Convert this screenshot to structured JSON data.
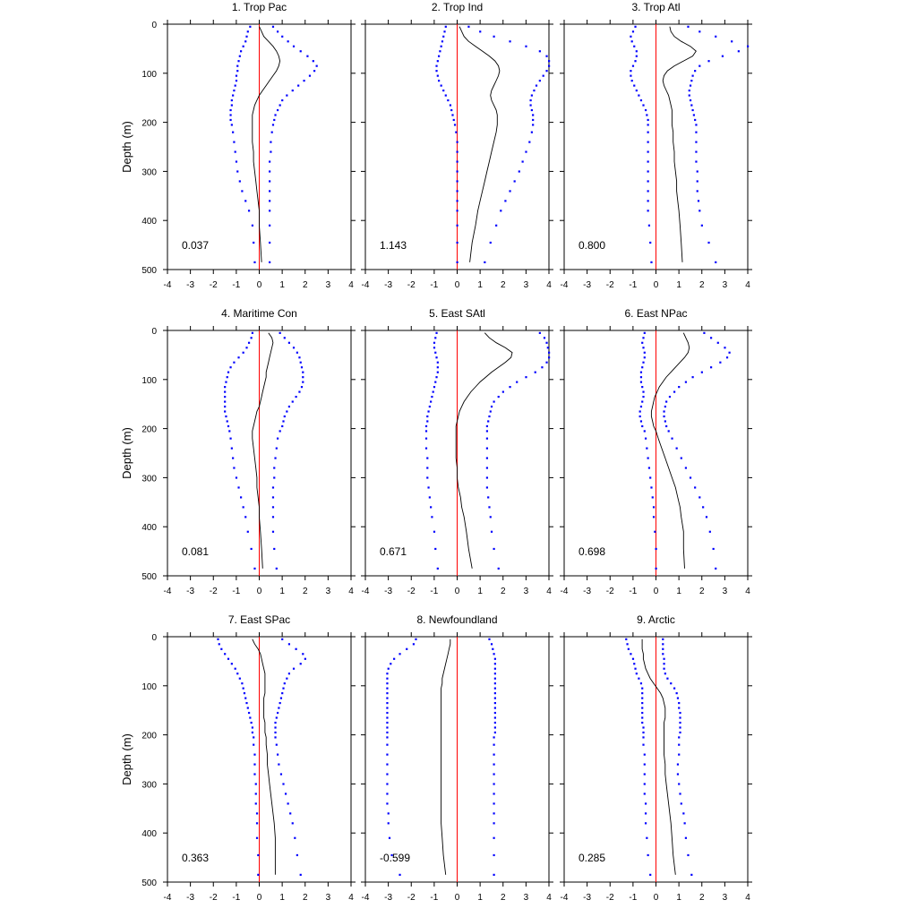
{
  "chart_data": {
    "type": "line",
    "layout": "3x3 grid of profile panels; x axis shared across columns, y axis (depth) labelled on left column",
    "ylabel": "Depth (m)",
    "xlim": [
      -4,
      4
    ],
    "ylim": [
      0,
      500
    ],
    "y_inverted": true,
    "x_ticks": [
      "-4",
      "-3",
      "-2",
      "-1",
      "0",
      "1",
      "2",
      "3",
      "4"
    ],
    "y_ticks": [
      "0",
      "100",
      "200",
      "300",
      "400",
      "500"
    ],
    "colors": {
      "profile": "#000000",
      "bounds": "#0000ff",
      "zero_line": "#ff0000"
    },
    "series_styles": {
      "profile": "solid black line",
      "bounds": "blue dotted markers (lower and upper)",
      "zero_line": "vertical red line at x=0"
    },
    "depths": [
      5,
      15,
      25,
      35,
      45,
      55,
      65,
      75,
      85,
      95,
      105,
      115,
      125,
      135,
      145,
      155,
      165,
      175,
      185,
      195,
      205,
      220,
      240,
      260,
      280,
      300,
      320,
      340,
      360,
      380,
      410,
      445,
      485
    ],
    "panels": [
      {
        "title": "1. Trop Pac",
        "value": "0.037",
        "profile": [
          0.0,
          0.1,
          0.2,
          0.4,
          0.6,
          0.75,
          0.85,
          0.9,
          0.85,
          0.75,
          0.6,
          0.45,
          0.3,
          0.15,
          0.0,
          -0.1,
          -0.2,
          -0.25,
          -0.3,
          -0.3,
          -0.3,
          -0.3,
          -0.3,
          -0.25,
          -0.25,
          -0.2,
          -0.15,
          -0.1,
          -0.05,
          0.0,
          0.0,
          0.05,
          0.1
        ],
        "lower": [
          -0.4,
          -0.5,
          -0.55,
          -0.6,
          -0.7,
          -0.8,
          -0.85,
          -0.9,
          -0.95,
          -0.95,
          -1.0,
          -1.0,
          -1.05,
          -1.1,
          -1.15,
          -1.2,
          -1.2,
          -1.25,
          -1.25,
          -1.25,
          -1.2,
          -1.15,
          -1.1,
          -1.05,
          -1.0,
          -0.95,
          -0.85,
          -0.75,
          -0.6,
          -0.45,
          -0.3,
          -0.25,
          -0.2
        ],
        "upper": [
          0.6,
          0.8,
          1.0,
          1.25,
          1.5,
          1.8,
          2.1,
          2.35,
          2.5,
          2.4,
          2.2,
          1.95,
          1.7,
          1.45,
          1.2,
          1.0,
          0.9,
          0.8,
          0.7,
          0.65,
          0.6,
          0.55,
          0.5,
          0.5,
          0.45,
          0.45,
          0.45,
          0.45,
          0.45,
          0.45,
          0.45,
          0.45,
          0.45
        ]
      },
      {
        "title": "2. Trop Ind",
        "value": "1.143",
        "profile": [
          0.1,
          0.2,
          0.3,
          0.5,
          0.8,
          1.1,
          1.4,
          1.65,
          1.8,
          1.85,
          1.8,
          1.7,
          1.6,
          1.5,
          1.45,
          1.5,
          1.6,
          1.7,
          1.75,
          1.75,
          1.75,
          1.7,
          1.6,
          1.5,
          1.4,
          1.3,
          1.2,
          1.1,
          1.0,
          0.9,
          0.8,
          0.65,
          0.55
        ],
        "lower": [
          -0.5,
          -0.55,
          -0.6,
          -0.65,
          -0.7,
          -0.75,
          -0.8,
          -0.85,
          -0.9,
          -0.9,
          -0.85,
          -0.8,
          -0.7,
          -0.6,
          -0.5,
          -0.4,
          -0.3,
          -0.25,
          -0.2,
          -0.15,
          -0.1,
          -0.05,
          0.0,
          0.0,
          0.0,
          0.0,
          0.0,
          0.0,
          0.0,
          0.0,
          0.0,
          0.0,
          0.0
        ],
        "upper": [
          0.5,
          1.0,
          1.6,
          2.3,
          3.0,
          3.6,
          3.9,
          4.0,
          4.0,
          3.9,
          3.75,
          3.6,
          3.45,
          3.35,
          3.25,
          3.2,
          3.2,
          3.25,
          3.3,
          3.3,
          3.3,
          3.25,
          3.15,
          3.0,
          2.85,
          2.7,
          2.5,
          2.3,
          2.1,
          1.9,
          1.7,
          1.45,
          1.2
        ]
      },
      {
        "title": "3. Trop Atl",
        "value": "0.800",
        "profile": [
          0.6,
          0.65,
          0.8,
          1.1,
          1.5,
          1.75,
          1.6,
          1.2,
          0.8,
          0.5,
          0.35,
          0.3,
          0.35,
          0.45,
          0.55,
          0.6,
          0.65,
          0.7,
          0.7,
          0.7,
          0.7,
          0.75,
          0.75,
          0.8,
          0.8,
          0.85,
          0.9,
          0.9,
          0.95,
          1.0,
          1.05,
          1.1,
          1.15
        ],
        "lower": [
          -0.9,
          -1.0,
          -1.1,
          -1.05,
          -0.95,
          -0.85,
          -0.85,
          -0.9,
          -1.0,
          -1.1,
          -1.1,
          -1.05,
          -0.95,
          -0.85,
          -0.75,
          -0.65,
          -0.55,
          -0.45,
          -0.4,
          -0.35,
          -0.35,
          -0.35,
          -0.35,
          -0.35,
          -0.35,
          -0.35,
          -0.35,
          -0.35,
          -0.35,
          -0.35,
          -0.3,
          -0.25,
          -0.2
        ],
        "upper": [
          1.4,
          1.9,
          2.6,
          3.3,
          4.0,
          3.6,
          2.9,
          2.3,
          1.9,
          1.7,
          1.6,
          1.55,
          1.5,
          1.45,
          1.45,
          1.5,
          1.55,
          1.6,
          1.65,
          1.7,
          1.75,
          1.75,
          1.75,
          1.75,
          1.75,
          1.8,
          1.8,
          1.8,
          1.85,
          1.9,
          2.0,
          2.3,
          2.6
        ]
      },
      {
        "title": "4. Maritime Con",
        "value": "0.081",
        "profile": [
          0.4,
          0.55,
          0.6,
          0.55,
          0.5,
          0.45,
          0.4,
          0.35,
          0.3,
          0.3,
          0.25,
          0.2,
          0.15,
          0.1,
          0.05,
          0.0,
          -0.1,
          -0.15,
          -0.2,
          -0.25,
          -0.3,
          -0.3,
          -0.25,
          -0.2,
          -0.15,
          -0.1,
          -0.1,
          -0.05,
          0.0,
          0.0,
          0.05,
          0.1,
          0.15
        ],
        "lower": [
          -0.3,
          -0.35,
          -0.45,
          -0.55,
          -0.7,
          -0.9,
          -1.1,
          -1.25,
          -1.35,
          -1.4,
          -1.45,
          -1.5,
          -1.5,
          -1.5,
          -1.5,
          -1.5,
          -1.5,
          -1.45,
          -1.4,
          -1.35,
          -1.3,
          -1.25,
          -1.2,
          -1.15,
          -1.1,
          -1.0,
          -0.9,
          -0.8,
          -0.7,
          -0.6,
          -0.5,
          -0.35,
          -0.2
        ],
        "upper": [
          0.9,
          1.1,
          1.3,
          1.5,
          1.65,
          1.75,
          1.8,
          1.85,
          1.9,
          1.9,
          1.9,
          1.85,
          1.75,
          1.6,
          1.45,
          1.3,
          1.2,
          1.1,
          1.05,
          1.0,
          0.9,
          0.8,
          0.75,
          0.7,
          0.65,
          0.65,
          0.6,
          0.6,
          0.6,
          0.6,
          0.6,
          0.65,
          0.75
        ]
      },
      {
        "title": "5. East SAtl",
        "value": "0.671",
        "profile": [
          1.2,
          1.4,
          1.7,
          2.1,
          2.4,
          2.35,
          2.1,
          1.8,
          1.5,
          1.25,
          1.0,
          0.8,
          0.6,
          0.45,
          0.3,
          0.2,
          0.1,
          0.05,
          0.0,
          -0.05,
          -0.05,
          -0.05,
          -0.05,
          -0.05,
          0.0,
          0.0,
          0.05,
          0.15,
          0.2,
          0.3,
          0.4,
          0.5,
          0.65
        ],
        "lower": [
          -0.9,
          -0.95,
          -1.0,
          -1.0,
          -0.95,
          -0.9,
          -0.85,
          -0.85,
          -0.85,
          -0.9,
          -0.95,
          -1.0,
          -1.05,
          -1.1,
          -1.15,
          -1.2,
          -1.25,
          -1.3,
          -1.3,
          -1.35,
          -1.35,
          -1.35,
          -1.35,
          -1.3,
          -1.3,
          -1.3,
          -1.25,
          -1.2,
          -1.15,
          -1.1,
          -1.0,
          -0.95,
          -0.85
        ],
        "upper": [
          3.6,
          3.8,
          3.9,
          3.95,
          4.0,
          4.0,
          3.9,
          3.7,
          3.4,
          3.0,
          2.6,
          2.3,
          2.0,
          1.8,
          1.6,
          1.5,
          1.45,
          1.4,
          1.35,
          1.3,
          1.3,
          1.3,
          1.3,
          1.3,
          1.3,
          1.3,
          1.3,
          1.35,
          1.4,
          1.45,
          1.5,
          1.6,
          1.8
        ]
      },
      {
        "title": "6. East NPac",
        "value": "0.698",
        "profile": [
          1.2,
          1.3,
          1.4,
          1.45,
          1.4,
          1.25,
          1.05,
          0.85,
          0.65,
          0.45,
          0.3,
          0.15,
          0.05,
          -0.05,
          -0.1,
          -0.15,
          -0.2,
          -0.2,
          -0.15,
          -0.1,
          0.0,
          0.1,
          0.25,
          0.4,
          0.55,
          0.7,
          0.85,
          0.95,
          1.05,
          1.1,
          1.2,
          1.2,
          1.25
        ],
        "lower": [
          -0.5,
          -0.55,
          -0.6,
          -0.55,
          -0.5,
          -0.5,
          -0.55,
          -0.6,
          -0.65,
          -0.65,
          -0.65,
          -0.6,
          -0.55,
          -0.55,
          -0.6,
          -0.65,
          -0.7,
          -0.7,
          -0.65,
          -0.6,
          -0.5,
          -0.45,
          -0.4,
          -0.35,
          -0.3,
          -0.25,
          -0.2,
          -0.15,
          -0.1,
          -0.1,
          -0.05,
          0.0,
          0.0
        ],
        "upper": [
          2.1,
          2.4,
          2.7,
          3.0,
          3.2,
          3.1,
          2.8,
          2.4,
          2.0,
          1.6,
          1.3,
          1.0,
          0.8,
          0.6,
          0.45,
          0.4,
          0.35,
          0.35,
          0.4,
          0.45,
          0.55,
          0.7,
          0.9,
          1.1,
          1.3,
          1.5,
          1.7,
          1.9,
          2.05,
          2.2,
          2.35,
          2.5,
          2.6
        ]
      },
      {
        "title": "7. East SPac",
        "value": "0.363",
        "profile": [
          -0.3,
          -0.2,
          -0.05,
          0.05,
          0.1,
          0.15,
          0.2,
          0.25,
          0.25,
          0.25,
          0.25,
          0.25,
          0.2,
          0.2,
          0.2,
          0.2,
          0.2,
          0.25,
          0.25,
          0.25,
          0.3,
          0.3,
          0.35,
          0.35,
          0.4,
          0.45,
          0.5,
          0.55,
          0.6,
          0.65,
          0.7,
          0.7,
          0.7
        ],
        "lower": [
          -1.8,
          -1.75,
          -1.65,
          -1.5,
          -1.35,
          -1.2,
          -1.05,
          -0.95,
          -0.85,
          -0.75,
          -0.7,
          -0.65,
          -0.6,
          -0.55,
          -0.5,
          -0.45,
          -0.4,
          -0.35,
          -0.3,
          -0.3,
          -0.25,
          -0.25,
          -0.2,
          -0.2,
          -0.2,
          -0.15,
          -0.15,
          -0.15,
          -0.1,
          -0.1,
          -0.1,
          -0.05,
          -0.05
        ],
        "upper": [
          1.0,
          1.3,
          1.6,
          1.9,
          2.0,
          1.8,
          1.5,
          1.3,
          1.2,
          1.1,
          1.05,
          1.0,
          0.95,
          0.9,
          0.85,
          0.8,
          0.75,
          0.7,
          0.7,
          0.7,
          0.7,
          0.75,
          0.8,
          0.85,
          0.95,
          1.05,
          1.15,
          1.25,
          1.35,
          1.45,
          1.55,
          1.65,
          1.8
        ]
      },
      {
        "title": "8. Newfoundland",
        "value": "-0.599",
        "profile": [
          -0.3,
          -0.3,
          -0.35,
          -0.4,
          -0.45,
          -0.5,
          -0.55,
          -0.6,
          -0.65,
          -0.65,
          -0.7,
          -0.7,
          -0.7,
          -0.7,
          -0.7,
          -0.7,
          -0.7,
          -0.7,
          -0.7,
          -0.7,
          -0.7,
          -0.7,
          -0.7,
          -0.7,
          -0.7,
          -0.7,
          -0.7,
          -0.7,
          -0.7,
          -0.7,
          -0.65,
          -0.6,
          -0.5
        ],
        "lower": [
          -1.8,
          -1.9,
          -2.2,
          -2.5,
          -2.75,
          -2.9,
          -3.0,
          -3.05,
          -3.05,
          -3.05,
          -3.05,
          -3.05,
          -3.05,
          -3.05,
          -3.05,
          -3.05,
          -3.05,
          -3.05,
          -3.05,
          -3.05,
          -3.05,
          -3.05,
          -3.05,
          -3.05,
          -3.05,
          -3.05,
          -3.05,
          -3.05,
          -3.0,
          -3.0,
          -2.95,
          -2.85,
          -2.5
        ],
        "upper": [
          1.4,
          1.5,
          1.55,
          1.6,
          1.65,
          1.65,
          1.65,
          1.65,
          1.65,
          1.65,
          1.65,
          1.65,
          1.65,
          1.65,
          1.65,
          1.65,
          1.65,
          1.65,
          1.65,
          1.65,
          1.6,
          1.6,
          1.6,
          1.6,
          1.6,
          1.6,
          1.6,
          1.6,
          1.6,
          1.6,
          1.6,
          1.6,
          1.6
        ]
      },
      {
        "title": "9. Arctic",
        "value": "0.285",
        "profile": [
          -0.6,
          -0.6,
          -0.6,
          -0.55,
          -0.55,
          -0.5,
          -0.45,
          -0.35,
          -0.25,
          -0.1,
          0.05,
          0.2,
          0.3,
          0.35,
          0.4,
          0.4,
          0.4,
          0.35,
          0.35,
          0.35,
          0.35,
          0.35,
          0.35,
          0.4,
          0.4,
          0.45,
          0.5,
          0.55,
          0.6,
          0.65,
          0.7,
          0.75,
          0.85
        ],
        "lower": [
          -1.3,
          -1.25,
          -1.2,
          -1.1,
          -1.0,
          -0.95,
          -0.9,
          -0.85,
          -0.75,
          -0.65,
          -0.6,
          -0.6,
          -0.6,
          -0.6,
          -0.6,
          -0.6,
          -0.6,
          -0.6,
          -0.55,
          -0.55,
          -0.55,
          -0.55,
          -0.5,
          -0.5,
          -0.5,
          -0.5,
          -0.5,
          -0.45,
          -0.45,
          -0.45,
          -0.4,
          -0.35,
          -0.25
        ],
        "upper": [
          0.3,
          0.3,
          0.3,
          0.3,
          0.35,
          0.35,
          0.35,
          0.4,
          0.5,
          0.65,
          0.8,
          0.9,
          0.95,
          1.0,
          1.0,
          1.05,
          1.05,
          1.05,
          1.05,
          1.05,
          1.0,
          1.0,
          1.0,
          0.95,
          0.95,
          1.0,
          1.05,
          1.1,
          1.2,
          1.25,
          1.3,
          1.4,
          1.55
        ]
      }
    ]
  }
}
